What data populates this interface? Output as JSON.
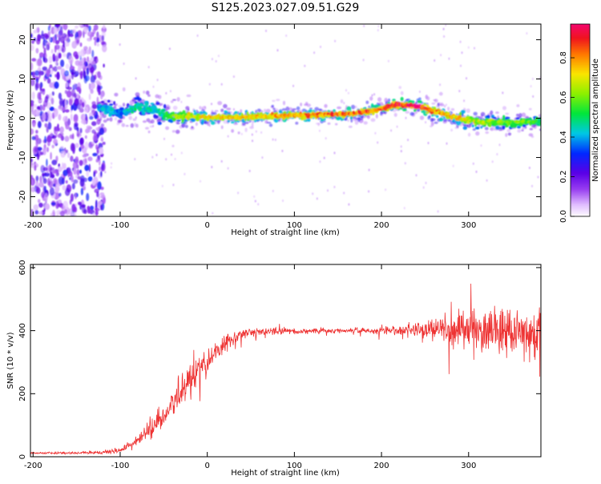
{
  "title": "S125.2023.027.09.51.G29",
  "chart_data": [
    {
      "type": "heatmap",
      "xlabel": "Height of straight line (km)",
      "ylabel": "Frequency (Hz)",
      "xlim": [
        -203,
        383
      ],
      "ylim": [
        -25,
        24
      ],
      "xticks": [
        -200,
        -100,
        0,
        100,
        200,
        300
      ],
      "yticks": [
        -20,
        -10,
        0,
        10,
        20
      ],
      "colorbar": {
        "label": "Normalized spectral amplitude",
        "range": [
          0,
          0.97
        ],
        "ticks": [
          0.0,
          0.2,
          0.4,
          0.6,
          0.8
        ],
        "tick_labels": [
          "0.0",
          "0.2",
          "0.4",
          "0.6",
          "0.8"
        ]
      },
      "ridge": {
        "x": [
          -125,
          -110,
          -100,
          -90,
          -80,
          -70,
          -60,
          -50,
          -40,
          -30,
          -20,
          0,
          50,
          100,
          150,
          180,
          200,
          220,
          240,
          260,
          280,
          300,
          320,
          340,
          360,
          380
        ],
        "freq": [
          3,
          2,
          1.5,
          2,
          3,
          2.5,
          2,
          1,
          0.2,
          0.3,
          0.5,
          0.2,
          0.3,
          0.8,
          1,
          1.5,
          2.5,
          3.5,
          3,
          2,
          0.5,
          -0.5,
          -1,
          -1.2,
          -1,
          -0.8
        ],
        "peak_amplitude": [
          0.4,
          0.45,
          0.35,
          0.45,
          0.5,
          0.45,
          0.45,
          0.5,
          0.6,
          0.65,
          0.7,
          0.75,
          0.75,
          0.8,
          0.85,
          0.85,
          0.85,
          0.9,
          0.95,
          0.8,
          0.75,
          0.7,
          0.65,
          0.6,
          0.6,
          0.55
        ]
      },
      "grid": false
    },
    {
      "type": "line",
      "xlabel": "Height of straight line (km)",
      "ylabel": "SNR (10 * v/v)",
      "xlim": [
        -203,
        383
      ],
      "ylim": [
        0,
        610
      ],
      "xticks": [
        -200,
        -100,
        0,
        100,
        200,
        300
      ],
      "yticks": [
        0,
        200,
        400,
        600
      ],
      "series": [
        {
          "color": "#ee3333",
          "x": [
            -203,
            -150,
            -120,
            -100,
            -80,
            -60,
            -40,
            -20,
            0,
            20,
            40,
            60,
            80,
            100,
            150,
            200,
            250,
            300,
            340,
            383
          ],
          "y": [
            12,
            12,
            14,
            20,
            50,
            100,
            160,
            250,
            300,
            360,
            390,
            395,
            400,
            398,
            400,
            400,
            405,
            405,
            400,
            395
          ],
          "noise_amplitude": [
            4,
            4,
            6,
            12,
            25,
            40,
            60,
            70,
            60,
            35,
            20,
            16,
            15,
            12,
            10,
            14,
            35,
            80,
            100,
            90
          ]
        }
      ],
      "grid": false
    }
  ]
}
